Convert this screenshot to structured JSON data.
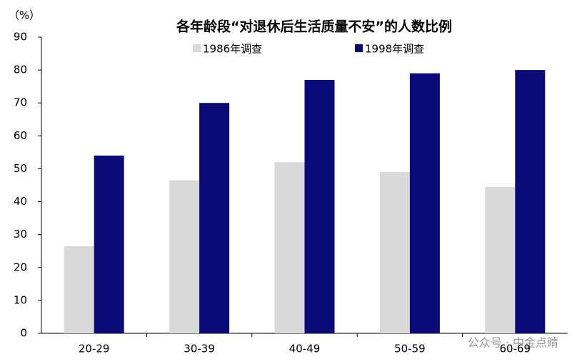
{
  "chart_data": {
    "type": "bar",
    "title": "各年龄段“对退休后生活质量不安”的人数比例",
    "y_unit": "（%）",
    "categories": [
      "20-29",
      "30-39",
      "40-49",
      "50-59",
      "60-69"
    ],
    "series": [
      {
        "name": "1986年调查",
        "color": "#d9d9d9",
        "values": [
          26.5,
          46.5,
          52,
          49,
          44.5
        ]
      },
      {
        "name": "1998年调查",
        "color": "#0a0a78",
        "values": [
          54,
          70,
          77,
          79,
          80
        ]
      }
    ],
    "ylim": [
      0,
      90
    ],
    "yticks": [
      0,
      10,
      20,
      30,
      40,
      50,
      60,
      70,
      80,
      90
    ],
    "watermark": "公众号 · 中金点睛"
  }
}
